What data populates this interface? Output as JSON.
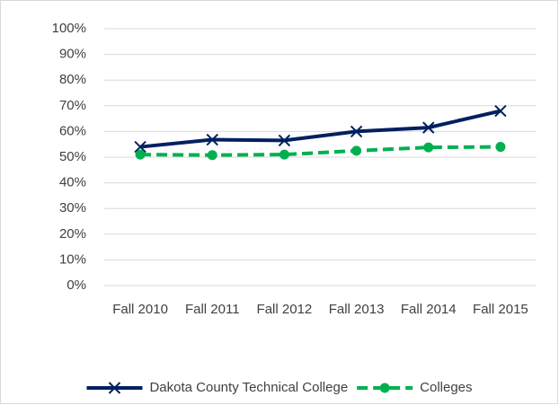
{
  "chart_data": {
    "type": "line",
    "categories": [
      "Fall 2010",
      "Fall 2011",
      "Fall 2012",
      "Fall 2013",
      "Fall 2014",
      "Fall 2015"
    ],
    "series": [
      {
        "name": "Dakota County Technical College",
        "color": "#002060",
        "marker": "x",
        "dash": false,
        "values": [
          54,
          56.8,
          56.5,
          60,
          61.5,
          68
        ]
      },
      {
        "name": "Colleges",
        "color": "#00b050",
        "marker": "circle",
        "dash": true,
        "values": [
          51,
          50.8,
          51,
          52.5,
          53.8,
          54
        ]
      }
    ],
    "ylim": [
      0,
      100
    ],
    "yticks": [
      {
        "value": 0,
        "label": "0%"
      },
      {
        "value": 10,
        "label": "10%"
      },
      {
        "value": 20,
        "label": "20%"
      },
      {
        "value": 30,
        "label": "30%"
      },
      {
        "value": 40,
        "label": "40%"
      },
      {
        "value": 50,
        "label": "50%"
      },
      {
        "value": 60,
        "label": "60%"
      },
      {
        "value": 70,
        "label": "70%"
      },
      {
        "value": 80,
        "label": "80%"
      },
      {
        "value": 90,
        "label": "90%"
      },
      {
        "value": 100,
        "label": "100%"
      }
    ],
    "grid": true,
    "legend": "bottom"
  }
}
